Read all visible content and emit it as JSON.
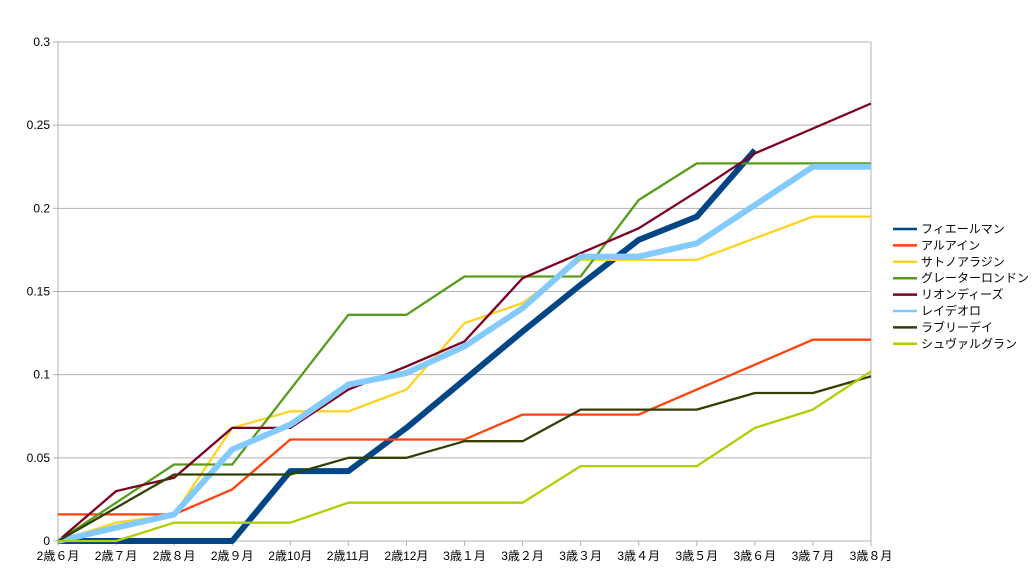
{
  "chart_data": {
    "type": "line",
    "title": "",
    "xlabel": "",
    "ylabel": "",
    "ylim": [
      0,
      0.3
    ],
    "yticks": [
      "0",
      "0.05",
      "0.1",
      "0.15",
      "0.2",
      "0.25",
      "0.3"
    ],
    "grid": true,
    "legend_position": "right",
    "categories": [
      "2歳６月",
      "2歳７月",
      "2歳８月",
      "2歳９月",
      "2歳10月",
      "2歳11月",
      "2歳12月",
      "3歳１月",
      "3歳２月",
      "3歳３月",
      "3歳４月",
      "3歳５月",
      "3歳６月",
      "3歳７月",
      "3歳８月"
    ],
    "series": [
      {
        "name": "フィエールマン",
        "color": "#004586",
        "width": "thick",
        "values": [
          0,
          0,
          0,
          0,
          0.042,
          0.042,
          0.068,
          0.097,
          0.126,
          0.154,
          0.181,
          0.195,
          0.235,
          null,
          null
        ]
      },
      {
        "name": "アルアイン",
        "color": "#ff420e",
        "width": "thin",
        "values": [
          0.016,
          0.016,
          0.016,
          0.031,
          0.061,
          0.061,
          0.061,
          0.061,
          0.076,
          0.076,
          0.076,
          0.091,
          0.106,
          0.121,
          0.121
        ]
      },
      {
        "name": "サトノアラジン",
        "color": "#ffd320",
        "width": "thin",
        "values": [
          0,
          0.011,
          0.016,
          0.068,
          0.078,
          0.078,
          0.091,
          0.131,
          0.143,
          0.169,
          0.169,
          0.169,
          0.182,
          0.195,
          0.195
        ]
      },
      {
        "name": "グレーターロンドン",
        "color": "#579d1c",
        "width": "thin",
        "values": [
          0,
          0.023,
          0.046,
          0.046,
          0.091,
          0.136,
          0.136,
          0.159,
          0.159,
          0.159,
          0.205,
          0.227,
          0.227,
          0.227,
          0.227
        ]
      },
      {
        "name": "リオンディーズ",
        "color": "#7e0021",
        "width": "thin",
        "values": [
          0,
          0.03,
          0.038,
          0.068,
          0.068,
          0.091,
          0.105,
          0.12,
          0.158,
          0.173,
          0.188,
          0.21,
          0.233,
          0.248,
          0.263
        ]
      },
      {
        "name": "レイデオロ",
        "color": "#83caff",
        "width": "thick",
        "values": [
          0,
          0.008,
          0.016,
          0.055,
          0.07,
          0.094,
          0.101,
          0.117,
          0.14,
          0.171,
          0.171,
          0.179,
          0.202,
          0.225,
          0.225
        ]
      },
      {
        "name": "ラブリーデイ",
        "color": "#314004",
        "width": "thin",
        "values": [
          0,
          0.02,
          0.04,
          0.04,
          0.04,
          0.05,
          0.05,
          0.06,
          0.06,
          0.079,
          0.079,
          0.079,
          0.089,
          0.089,
          0.099
        ]
      },
      {
        "name": "シュヴァルグラン",
        "color": "#aecf00",
        "width": "thin",
        "values": [
          0,
          0,
          0.011,
          0.011,
          0.011,
          0.023,
          0.023,
          0.023,
          0.023,
          0.045,
          0.045,
          0.045,
          0.068,
          0.079,
          0.102
        ]
      }
    ]
  }
}
